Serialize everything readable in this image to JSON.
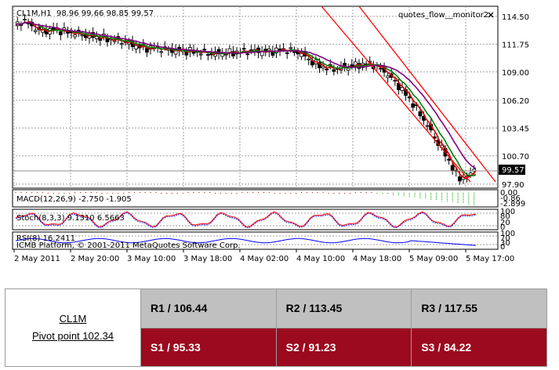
{
  "chart_header": {
    "symbol_timeframe": "CL1M,H1",
    "ohlc": "98.96 99.66 98.85 99.57",
    "window_label": "quotes_flow__monitor2",
    "close_icon": "x-close-icon"
  },
  "price_axis": {
    "ticks": [
      "114.50",
      "111.75",
      "109.00",
      "106.20",
      "103.45",
      "100.70",
      "97.90"
    ],
    "current_price": "99.57"
  },
  "time_axis": {
    "ticks": [
      "2 May 2011",
      "2 May 20:00",
      "3 May 10:00",
      "3 May 18:00",
      "4 May 02:00",
      "4 May 10:00",
      "4 May 18:00",
      "5 May 09:00",
      "5 May 17:00"
    ]
  },
  "macd_panel": {
    "label": "MACD(12,26,9) -2.750 -1.905",
    "scale_ticks": [
      "0.00",
      "-0.86",
      "-2.899"
    ]
  },
  "stoch_panel": {
    "label": "Stoch(8,3,3) 9.1310 6.5663",
    "scale_ticks": [
      "100",
      "80",
      "20",
      "0"
    ]
  },
  "rsi_panel": {
    "label": "RSI(8) 16.2411",
    "scale_ticks": [
      "100",
      "70",
      "30",
      "0"
    ],
    "copyright": "ICMB Platform, © 2001-2011 MetaQuotes Software Corp."
  },
  "pivot_table": {
    "symbol": "CL1M",
    "pivot_label": "Pivot point 102.34",
    "r1": "R1 / 106.44",
    "r2": "R2  / 113.45",
    "r3": "R3 / 117.55",
    "s1": "S1 / 95.33",
    "s2": "S2 /  91.23",
    "s3": "S3 /  84.22"
  },
  "colors": {
    "ma_fast": "#d40000",
    "ma_mid": "#008000",
    "ma_slow": "#800080",
    "channel": "#ff0000",
    "macd_hist": "#00a000",
    "macd_signal": "#ff0000",
    "stoch_main": "#ff0000",
    "rsi_line": "#0000ff",
    "support_row": "#9b0a1e",
    "resistance_row": "#c0c0c0"
  },
  "chart_data": {
    "type": "candlestick",
    "x": [
      "2 May 2011",
      "2 May 20:00",
      "3 May 10:00",
      "3 May 18:00",
      "4 May 02:00",
      "4 May 10:00",
      "4 May 18:00",
      "5 May 09:00",
      "5 May 17:00"
    ],
    "close_approx": [
      113.5,
      113.2,
      112.0,
      111.0,
      110.8,
      111.0,
      109.6,
      105.5,
      99.57
    ],
    "last_bar": {
      "open": 98.96,
      "high": 99.66,
      "low": 98.85,
      "close": 99.57
    },
    "ylim": [
      97.5,
      115.5
    ],
    "grid": true,
    "indicators": [
      {
        "name": "MACD(12,26,9)",
        "values": [
          -2.75,
          -1.905
        ]
      },
      {
        "name": "Stoch(8,3,3)",
        "values": [
          9.131,
          6.5663
        ]
      },
      {
        "name": "RSI(8)",
        "values": [
          16.2411
        ]
      }
    ]
  }
}
